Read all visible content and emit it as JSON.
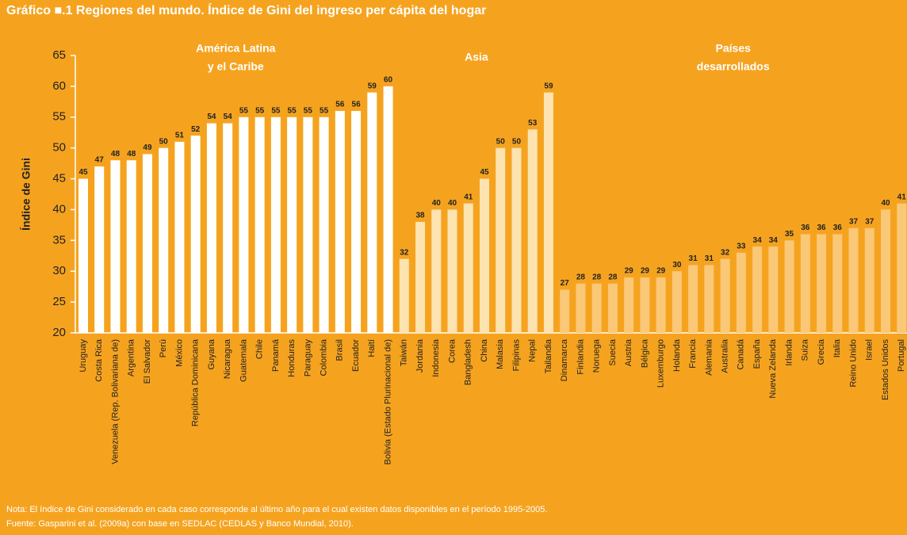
{
  "chart_data": {
    "type": "bar",
    "title": "Gráfico ■.1 Regiones del mundo. Índice de Gini del ingreso per cápita del hogar",
    "y_label": "Índice de Gini",
    "ylim": [
      20,
      65
    ],
    "yticks": [
      20,
      25,
      30,
      35,
      40,
      45,
      50,
      55,
      60,
      65
    ],
    "series": [
      {
        "name": [
          "América Latina",
          "y el Caribe"
        ],
        "color": "#ffffff",
        "categories": [
          "Uruguay",
          "Costa Rica",
          "Venezuela (Rep. Bolivariana de)",
          "Argentina",
          "El Salvador",
          "Perú",
          "México",
          "República Dominicana",
          "Guyana",
          "Nicaragua",
          "Guatemala",
          "Chile",
          "Panamá",
          "Honduras",
          "Paraguay",
          "Colombia",
          "Brasil",
          "Ecuador",
          "Haití",
          "Bolivia (Estado Plurinacional de)"
        ],
        "values": [
          45,
          47,
          48,
          48,
          49,
          50,
          51,
          52,
          54,
          54,
          55,
          55,
          55,
          55,
          55,
          55,
          56,
          56,
          59,
          60
        ]
      },
      {
        "name": [
          "Asia"
        ],
        "color": "#fde3b0",
        "categories": [
          "Taiwán",
          "Jordania",
          "Indonesia",
          "Corea",
          "Bangladesh",
          "China",
          "Malasia",
          "Filipinas",
          "Nepal",
          "Tailandia"
        ],
        "values": [
          32,
          38,
          40,
          40,
          41,
          45,
          50,
          50,
          53,
          59
        ]
      },
      {
        "name": [
          "Países",
          "desarrollados"
        ],
        "color": "#fbc878",
        "categories": [
          "Dinamarca",
          "Finlandia",
          "Noruega",
          "Suecia",
          "Austria",
          "Bélgica",
          "Luxemburgo",
          "Holanda",
          "Francia",
          "Alemania",
          "Australia",
          "Canadá",
          "España",
          "Nueva Zelanda",
          "Irlanda",
          "Suiza",
          "Grecia",
          "Italia",
          "Reino Unido",
          "Israel",
          "Estados Unidos",
          "Portugal"
        ],
        "values": [
          27,
          28,
          28,
          28,
          29,
          29,
          29,
          30,
          31,
          31,
          32,
          33,
          34,
          34,
          35,
          36,
          36,
          36,
          37,
          37,
          40,
          41
        ]
      }
    ],
    "notes": [
      "Nota: El índice de Gini considerado en cada caso corresponde al último año para el cual existen datos disponibles en el período 1995-2005.",
      "Fuente: Gasparini et al. (2009a) con base en SEDLAC (CEDLAS y Banco Mundial, 2010)."
    ]
  }
}
